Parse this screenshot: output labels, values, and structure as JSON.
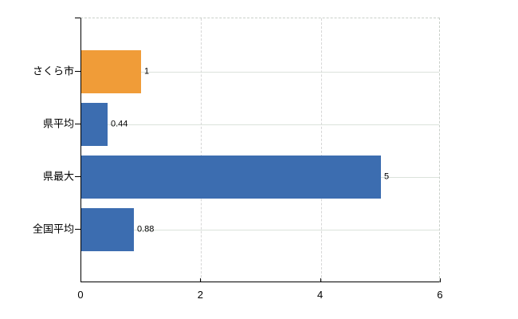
{
  "chart_data": {
    "type": "bar",
    "orientation": "horizontal",
    "title": "",
    "xlabel": "",
    "ylabel": "",
    "categories": [
      "さくら市",
      "県平均",
      "県最大",
      "全国平均"
    ],
    "values": [
      1,
      0.44,
      5,
      0.88
    ],
    "value_labels": [
      "1",
      "0.44",
      "5",
      "0.88"
    ],
    "bar_colors": [
      "#F09C38",
      "#3C6DB0",
      "#3C6DB0",
      "#3C6DB0"
    ],
    "xlim": [
      0,
      6
    ],
    "x_ticks": [
      0,
      2,
      4,
      6
    ],
    "x_tick_labels": [
      "0",
      "2",
      "4",
      "6"
    ],
    "grid": true,
    "legend_position": "none"
  },
  "colors": {
    "bar_orange": "#F09C38",
    "bar_blue": "#3C6DB0",
    "axis_line": "#000000",
    "h_gridline": "#dbe2db",
    "v_gridline": "#d6d6d6",
    "dashed_border": "#c9cfc9",
    "text": "#000000",
    "background": "#ffffff"
  }
}
